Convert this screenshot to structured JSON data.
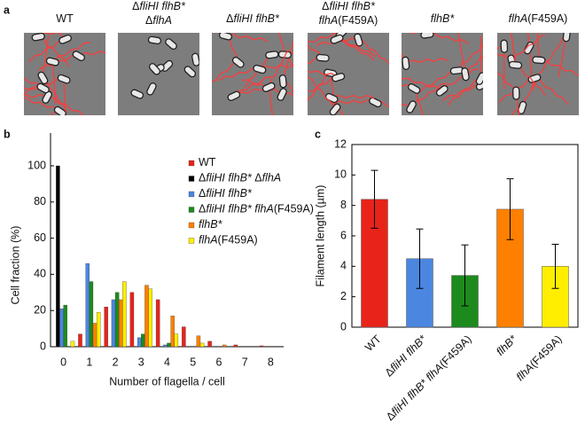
{
  "panel_labels": [
    "a",
    "b",
    "c"
  ],
  "panel_a": {
    "labels": [
      [
        "WT"
      ],
      [
        "ΔfliHI flhB*",
        "ΔflhA"
      ],
      [
        "ΔfliHI flhB*"
      ],
      [
        "ΔfliHI flhB*",
        "flhA(F459A)"
      ],
      [
        "flhB*"
      ],
      [
        "flhA(F459A)"
      ]
    ]
  },
  "chart_data": [
    {
      "type": "grouped-bar",
      "xlabel": "Number of flagella / cell",
      "ylabel": "Cell fraction (%)",
      "categories": [
        "0",
        "1",
        "2",
        "3",
        "4",
        "5",
        "6",
        "7",
        "8"
      ],
      "ylim": [
        0,
        100
      ],
      "yticks": [
        0,
        20,
        40,
        60,
        80,
        100
      ],
      "series": [
        {
          "name": "WT",
          "color": "#e8231a",
          "values": [
            0,
            7,
            22,
            30,
            26,
            11,
            3,
            1,
            0.5
          ]
        },
        {
          "name": "ΔfliHI flhB* ΔflhA",
          "color": "#000000",
          "values": [
            100,
            0,
            0,
            0,
            0,
            0,
            0,
            0,
            0
          ]
        },
        {
          "name": "ΔfliHI flhB*",
          "color": "#4b86e0",
          "values": [
            21,
            46,
            26,
            5,
            1,
            0,
            0,
            0,
            0
          ]
        },
        {
          "name": "ΔfliHI flhB* flhA(F459A)",
          "color": "#1d8a1d",
          "values": [
            23,
            36,
            30,
            7,
            2,
            0,
            0,
            0,
            0
          ]
        },
        {
          "name": "flhB*",
          "color": "#ff8000",
          "values": [
            0,
            13,
            26,
            34,
            17,
            6,
            1,
            0,
            0
          ]
        },
        {
          "name": "flhA(F459A)",
          "color": "#ffee00",
          "values": [
            3,
            19,
            36,
            32,
            7,
            2,
            0,
            0,
            0
          ]
        }
      ]
    },
    {
      "type": "bar",
      "ylabel": "Filament length (µm)",
      "categories": [
        "WT",
        "ΔfliHI flhB*",
        "ΔfliHI flhB* flhA(F459A)",
        "flhB*",
        "flhA(F459A)"
      ],
      "colors": [
        "#e8231a",
        "#4b86e0",
        "#1d8a1d",
        "#ff8000",
        "#ffee00"
      ],
      "values": [
        8.4,
        4.5,
        3.4,
        7.75,
        4.0
      ],
      "errors": [
        1.9,
        1.95,
        2.0,
        2.0,
        1.45
      ],
      "ylim": [
        0,
        12
      ],
      "yticks": [
        0,
        2,
        4,
        6,
        8,
        10,
        12
      ]
    }
  ]
}
